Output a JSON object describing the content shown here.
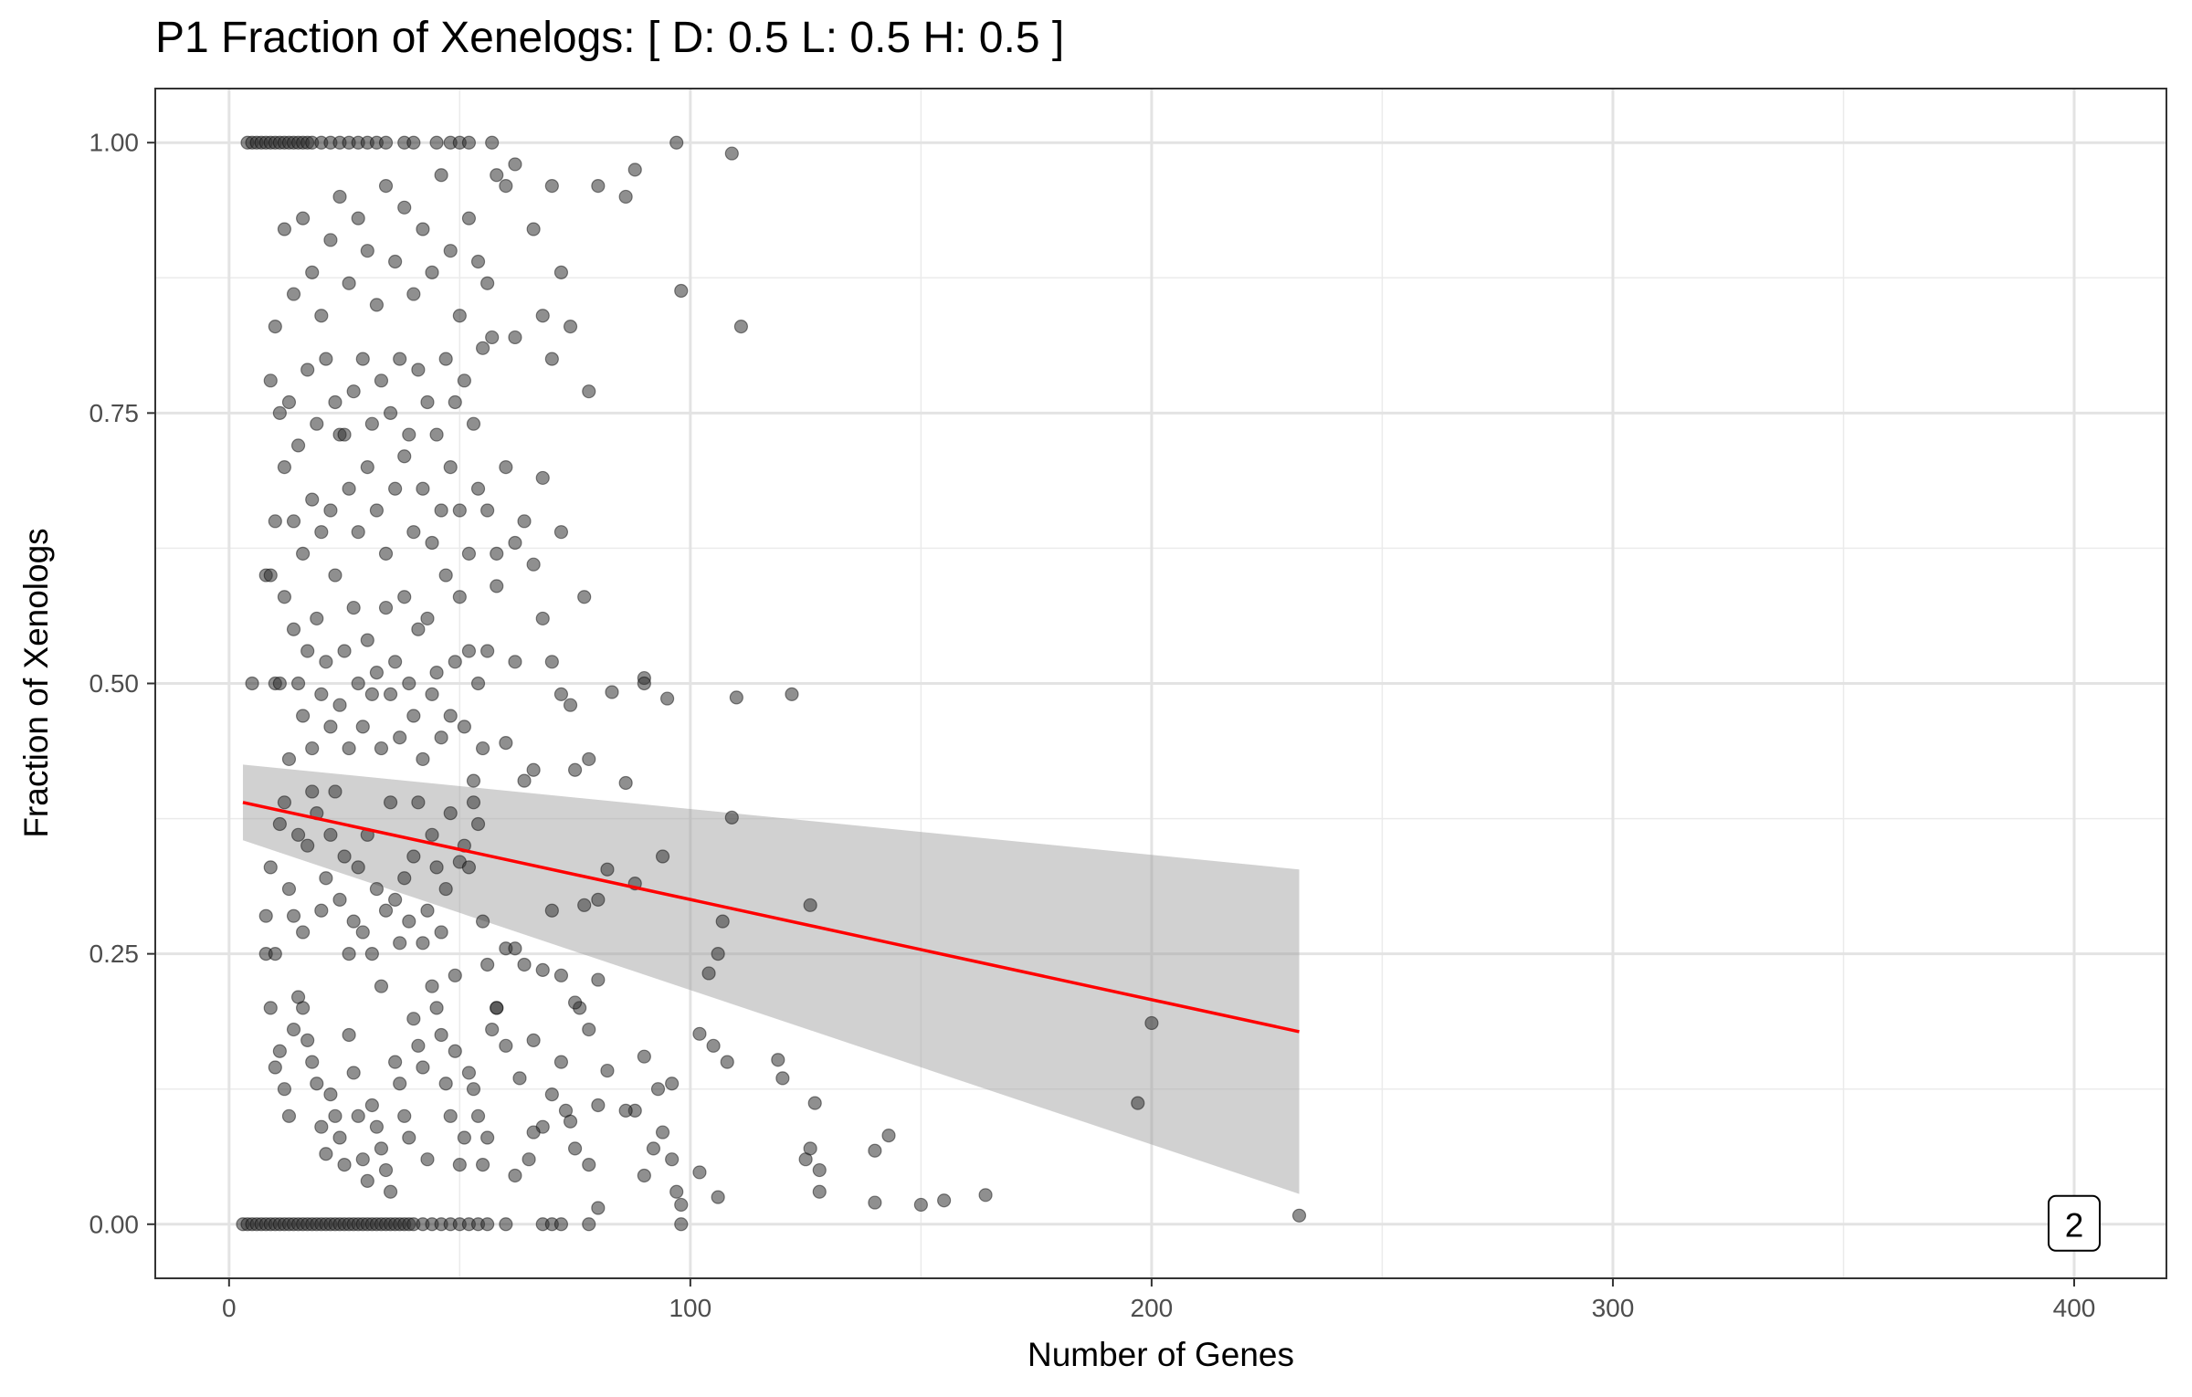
{
  "chart_data": {
    "type": "scatter",
    "title": "P1 Fraction of Xenelogs: [ D: 0.5 L: 0.5 H: 0.5 ]",
    "xlabel": "Number of Genes",
    "ylabel": "Fraction of Xenologs",
    "xlim": [
      -16,
      420
    ],
    "ylim": [
      -0.05,
      1.05
    ],
    "x_ticks": [
      0,
      100,
      200,
      300,
      400
    ],
    "x_tick_labels": [
      "0",
      "100",
      "200",
      "300",
      "400"
    ],
    "y_ticks": [
      0.0,
      0.25,
      0.5,
      0.75,
      1.0
    ],
    "y_tick_labels": [
      "0.00",
      "0.25",
      "0.50",
      "0.75",
      "1.00"
    ],
    "grid": true,
    "legend": "none",
    "point_color": "#333333",
    "fit_line_color": "#ff0000",
    "ribbon_color": "#999999",
    "fit": {
      "method": "linear",
      "x": [
        3,
        232
      ],
      "y": [
        0.39,
        0.178
      ],
      "ci_lower": [
        0.355,
        0.028
      ],
      "ci_upper": [
        0.425,
        0.328
      ]
    },
    "annotation": {
      "text": "2",
      "x": 400,
      "y": 0.0
    },
    "points": [
      [
        4,
        1
      ],
      [
        5,
        1
      ],
      [
        6,
        1
      ],
      [
        7,
        1
      ],
      [
        8,
        1
      ],
      [
        9,
        1
      ],
      [
        10,
        1
      ],
      [
        11,
        1
      ],
      [
        12,
        1
      ],
      [
        13,
        1
      ],
      [
        14,
        1
      ],
      [
        15,
        1
      ],
      [
        16,
        1
      ],
      [
        17,
        1
      ],
      [
        18,
        1
      ],
      [
        20,
        1
      ],
      [
        22,
        1
      ],
      [
        24,
        1
      ],
      [
        26,
        1
      ],
      [
        28,
        1
      ],
      [
        30,
        1
      ],
      [
        32,
        1
      ],
      [
        34,
        1
      ],
      [
        38,
        1
      ],
      [
        40,
        1
      ],
      [
        45,
        1
      ],
      [
        48,
        1
      ],
      [
        50,
        1
      ],
      [
        52,
        1
      ],
      [
        57,
        1
      ],
      [
        97,
        1
      ],
      [
        109,
        0.99
      ],
      [
        3,
        0
      ],
      [
        4,
        0
      ],
      [
        5,
        0
      ],
      [
        6,
        0
      ],
      [
        7,
        0
      ],
      [
        8,
        0
      ],
      [
        9,
        0
      ],
      [
        10,
        0
      ],
      [
        11,
        0
      ],
      [
        12,
        0
      ],
      [
        13,
        0
      ],
      [
        14,
        0
      ],
      [
        15,
        0
      ],
      [
        16,
        0
      ],
      [
        17,
        0
      ],
      [
        18,
        0
      ],
      [
        19,
        0
      ],
      [
        20,
        0
      ],
      [
        21,
        0
      ],
      [
        22,
        0
      ],
      [
        23,
        0
      ],
      [
        24,
        0
      ],
      [
        25,
        0
      ],
      [
        26,
        0
      ],
      [
        27,
        0
      ],
      [
        28,
        0
      ],
      [
        29,
        0
      ],
      [
        30,
        0
      ],
      [
        31,
        0
      ],
      [
        32,
        0
      ],
      [
        33,
        0
      ],
      [
        34,
        0
      ],
      [
        35,
        0
      ],
      [
        36,
        0
      ],
      [
        37,
        0
      ],
      [
        38,
        0
      ],
      [
        39,
        0
      ],
      [
        40,
        0
      ],
      [
        42,
        0
      ],
      [
        44,
        0
      ],
      [
        46,
        0
      ],
      [
        48,
        0
      ],
      [
        50,
        0
      ],
      [
        52,
        0
      ],
      [
        54,
        0
      ],
      [
        56,
        0
      ],
      [
        60,
        0
      ],
      [
        68,
        0
      ],
      [
        70,
        0
      ],
      [
        72,
        0
      ],
      [
        78,
        0
      ],
      [
        98,
        0
      ],
      [
        232,
        0.008
      ],
      [
        150,
        0.018
      ],
      [
        155,
        0.022
      ],
      [
        164,
        0.027
      ],
      [
        140,
        0.02
      ],
      [
        128,
        0.03
      ],
      [
        106,
        0.025
      ],
      [
        98,
        0.018
      ],
      [
        97,
        0.03
      ],
      [
        102,
        0.048
      ],
      [
        96,
        0.06
      ],
      [
        90,
        0.045
      ],
      [
        92,
        0.07
      ],
      [
        125,
        0.06
      ],
      [
        126,
        0.07
      ],
      [
        128,
        0.05
      ],
      [
        140,
        0.068
      ],
      [
        143,
        0.082
      ],
      [
        127,
        0.112
      ],
      [
        197,
        0.112
      ],
      [
        200,
        0.186
      ],
      [
        119,
        0.152
      ],
      [
        120,
        0.135
      ],
      [
        108,
        0.15
      ],
      [
        102,
        0.176
      ],
      [
        105,
        0.165
      ],
      [
        96,
        0.13
      ],
      [
        93,
        0.125
      ],
      [
        90,
        0.155
      ],
      [
        94,
        0.085
      ],
      [
        88,
        0.105
      ],
      [
        86,
        0.105
      ],
      [
        104,
        0.232
      ],
      [
        106,
        0.25
      ],
      [
        107,
        0.28
      ],
      [
        126,
        0.295
      ],
      [
        109,
        0.376
      ],
      [
        110,
        0.487
      ],
      [
        122,
        0.49
      ],
      [
        95,
        0.486
      ],
      [
        90,
        0.505
      ],
      [
        90,
        0.5
      ],
      [
        83,
        0.492
      ],
      [
        86,
        0.408
      ],
      [
        88,
        0.315
      ],
      [
        94,
        0.34
      ],
      [
        82,
        0.328
      ],
      [
        80,
        0.226
      ],
      [
        78,
        0.18
      ],
      [
        82,
        0.142
      ],
      [
        80,
        0.11
      ],
      [
        78,
        0.055
      ],
      [
        80,
        0.015
      ],
      [
        76,
        0.2
      ],
      [
        75,
        0.07
      ],
      [
        72,
        0.15
      ],
      [
        73,
        0.105
      ],
      [
        74,
        0.095
      ],
      [
        70,
        0.12
      ],
      [
        68,
        0.09
      ],
      [
        66,
        0.085
      ],
      [
        65,
        0.06
      ],
      [
        63,
        0.135
      ],
      [
        62,
        0.045
      ],
      [
        60,
        0.165
      ],
      [
        58,
        0.2
      ],
      [
        57,
        0.18
      ],
      [
        56,
        0.08
      ],
      [
        55,
        0.055
      ],
      [
        54,
        0.1
      ],
      [
        53,
        0.125
      ],
      [
        52,
        0.14
      ],
      [
        51,
        0.08
      ],
      [
        50,
        0.055
      ],
      [
        49,
        0.16
      ],
      [
        48,
        0.1
      ],
      [
        47,
        0.13
      ],
      [
        46,
        0.175
      ],
      [
        45,
        0.2
      ],
      [
        44,
        0.22
      ],
      [
        43,
        0.06
      ],
      [
        42,
        0.145
      ],
      [
        41,
        0.165
      ],
      [
        40,
        0.19
      ],
      [
        39,
        0.08
      ],
      [
        38,
        0.1
      ],
      [
        37,
        0.13
      ],
      [
        36,
        0.15
      ],
      [
        35,
        0.03
      ],
      [
        34,
        0.05
      ],
      [
        33,
        0.07
      ],
      [
        32,
        0.09
      ],
      [
        31,
        0.11
      ],
      [
        30,
        0.04
      ],
      [
        29,
        0.06
      ],
      [
        28,
        0.1
      ],
      [
        27,
        0.14
      ],
      [
        26,
        0.175
      ],
      [
        25,
        0.055
      ],
      [
        24,
        0.08
      ],
      [
        23,
        0.1
      ],
      [
        22,
        0.12
      ],
      [
        21,
        0.065
      ],
      [
        20,
        0.09
      ],
      [
        19,
        0.13
      ],
      [
        18,
        0.15
      ],
      [
        17,
        0.17
      ],
      [
        16,
        0.2
      ],
      [
        15,
        0.21
      ],
      [
        14,
        0.18
      ],
      [
        13,
        0.1
      ],
      [
        12,
        0.125
      ],
      [
        11,
        0.16
      ],
      [
        10,
        0.145
      ],
      [
        9,
        0.2
      ],
      [
        8,
        0.25
      ],
      [
        8,
        0.285
      ],
      [
        9,
        0.33
      ],
      [
        10,
        0.25
      ],
      [
        11,
        0.37
      ],
      [
        12,
        0.39
      ],
      [
        13,
        0.31
      ],
      [
        14,
        0.285
      ],
      [
        15,
        0.36
      ],
      [
        16,
        0.27
      ],
      [
        17,
        0.35
      ],
      [
        18,
        0.4
      ],
      [
        19,
        0.38
      ],
      [
        20,
        0.29
      ],
      [
        21,
        0.32
      ],
      [
        22,
        0.36
      ],
      [
        23,
        0.4
      ],
      [
        24,
        0.3
      ],
      [
        25,
        0.34
      ],
      [
        26,
        0.25
      ],
      [
        27,
        0.28
      ],
      [
        28,
        0.33
      ],
      [
        29,
        0.27
      ],
      [
        30,
        0.36
      ],
      [
        31,
        0.25
      ],
      [
        32,
        0.31
      ],
      [
        33,
        0.22
      ],
      [
        34,
        0.29
      ],
      [
        35,
        0.39
      ],
      [
        36,
        0.3
      ],
      [
        37,
        0.26
      ],
      [
        38,
        0.32
      ],
      [
        39,
        0.28
      ],
      [
        40,
        0.34
      ],
      [
        41,
        0.39
      ],
      [
        42,
        0.26
      ],
      [
        43,
        0.29
      ],
      [
        44,
        0.36
      ],
      [
        45,
        0.33
      ],
      [
        46,
        0.27
      ],
      [
        47,
        0.31
      ],
      [
        48,
        0.38
      ],
      [
        49,
        0.23
      ],
      [
        50,
        0.335
      ],
      [
        51,
        0.35
      ],
      [
        52,
        0.33
      ],
      [
        53,
        0.39
      ],
      [
        54,
        0.37
      ],
      [
        55,
        0.28
      ],
      [
        56,
        0.24
      ],
      [
        58,
        0.2
      ],
      [
        60,
        0.255
      ],
      [
        62,
        0.255
      ],
      [
        64,
        0.24
      ],
      [
        66,
        0.17
      ],
      [
        68,
        0.235
      ],
      [
        70,
        0.29
      ],
      [
        72,
        0.23
      ],
      [
        75,
        0.205
      ],
      [
        77,
        0.295
      ],
      [
        80,
        0.3
      ],
      [
        5,
        0.5
      ],
      [
        8,
        0.6
      ],
      [
        9,
        0.6
      ],
      [
        10,
        0.5
      ],
      [
        11,
        0.5
      ],
      [
        12,
        0.58
      ],
      [
        13,
        0.43
      ],
      [
        14,
        0.55
      ],
      [
        15,
        0.5
      ],
      [
        16,
        0.47
      ],
      [
        17,
        0.53
      ],
      [
        18,
        0.44
      ],
      [
        19,
        0.56
      ],
      [
        20,
        0.49
      ],
      [
        21,
        0.52
      ],
      [
        22,
        0.46
      ],
      [
        23,
        0.6
      ],
      [
        24,
        0.48
      ],
      [
        25,
        0.53
      ],
      [
        26,
        0.44
      ],
      [
        27,
        0.57
      ],
      [
        28,
        0.5
      ],
      [
        29,
        0.46
      ],
      [
        30,
        0.54
      ],
      [
        31,
        0.49
      ],
      [
        32,
        0.51
      ],
      [
        33,
        0.44
      ],
      [
        34,
        0.57
      ],
      [
        35,
        0.49
      ],
      [
        36,
        0.52
      ],
      [
        37,
        0.45
      ],
      [
        38,
        0.58
      ],
      [
        39,
        0.5
      ],
      [
        40,
        0.47
      ],
      [
        41,
        0.55
      ],
      [
        42,
        0.43
      ],
      [
        43,
        0.56
      ],
      [
        44,
        0.49
      ],
      [
        45,
        0.51
      ],
      [
        46,
        0.45
      ],
      [
        47,
        0.6
      ],
      [
        48,
        0.47
      ],
      [
        49,
        0.52
      ],
      [
        50,
        0.58
      ],
      [
        51,
        0.46
      ],
      [
        52,
        0.53
      ],
      [
        53,
        0.41
      ],
      [
        54,
        0.5
      ],
      [
        55,
        0.44
      ],
      [
        56,
        0.53
      ],
      [
        58,
        0.59
      ],
      [
        60,
        0.445
      ],
      [
        62,
        0.52
      ],
      [
        64,
        0.41
      ],
      [
        66,
        0.42
      ],
      [
        68,
        0.56
      ],
      [
        70,
        0.52
      ],
      [
        72,
        0.49
      ],
      [
        74,
        0.48
      ],
      [
        75,
        0.42
      ],
      [
        77,
        0.58
      ],
      [
        78,
        0.43
      ],
      [
        10,
        0.65
      ],
      [
        12,
        0.7
      ],
      [
        14,
        0.65
      ],
      [
        16,
        0.62
      ],
      [
        18,
        0.67
      ],
      [
        20,
        0.64
      ],
      [
        22,
        0.66
      ],
      [
        24,
        0.73
      ],
      [
        26,
        0.68
      ],
      [
        28,
        0.64
      ],
      [
        30,
        0.7
      ],
      [
        32,
        0.66
      ],
      [
        34,
        0.62
      ],
      [
        36,
        0.68
      ],
      [
        38,
        0.71
      ],
      [
        40,
        0.64
      ],
      [
        42,
        0.68
      ],
      [
        44,
        0.63
      ],
      [
        46,
        0.66
      ],
      [
        48,
        0.7
      ],
      [
        50,
        0.66
      ],
      [
        52,
        0.62
      ],
      [
        54,
        0.68
      ],
      [
        56,
        0.66
      ],
      [
        58,
        0.62
      ],
      [
        60,
        0.7
      ],
      [
        62,
        0.63
      ],
      [
        64,
        0.65
      ],
      [
        66,
        0.61
      ],
      [
        68,
        0.69
      ],
      [
        72,
        0.64
      ],
      [
        9,
        0.78
      ],
      [
        11,
        0.75
      ],
      [
        13,
        0.76
      ],
      [
        15,
        0.72
      ],
      [
        17,
        0.79
      ],
      [
        19,
        0.74
      ],
      [
        21,
        0.8
      ],
      [
        23,
        0.76
      ],
      [
        25,
        0.73
      ],
      [
        27,
        0.77
      ],
      [
        29,
        0.8
      ],
      [
        31,
        0.74
      ],
      [
        33,
        0.78
      ],
      [
        35,
        0.75
      ],
      [
        37,
        0.8
      ],
      [
        39,
        0.73
      ],
      [
        41,
        0.79
      ],
      [
        43,
        0.76
      ],
      [
        45,
        0.73
      ],
      [
        47,
        0.8
      ],
      [
        49,
        0.76
      ],
      [
        51,
        0.78
      ],
      [
        53,
        0.74
      ],
      [
        55,
        0.81
      ],
      [
        57,
        0.82
      ],
      [
        62,
        0.82
      ],
      [
        70,
        0.8
      ],
      [
        78,
        0.77
      ],
      [
        10,
        0.83
      ],
      [
        12,
        0.92
      ],
      [
        14,
        0.86
      ],
      [
        16,
        0.93
      ],
      [
        18,
        0.88
      ],
      [
        20,
        0.84
      ],
      [
        22,
        0.91
      ],
      [
        24,
        0.95
      ],
      [
        26,
        0.87
      ],
      [
        28,
        0.93
      ],
      [
        30,
        0.9
      ],
      [
        32,
        0.85
      ],
      [
        34,
        0.96
      ],
      [
        36,
        0.89
      ],
      [
        38,
        0.94
      ],
      [
        40,
        0.86
      ],
      [
        42,
        0.92
      ],
      [
        44,
        0.88
      ],
      [
        46,
        0.97
      ],
      [
        48,
        0.9
      ],
      [
        50,
        0.84
      ],
      [
        52,
        0.93
      ],
      [
        54,
        0.89
      ],
      [
        56,
        0.87
      ],
      [
        58,
        0.97
      ],
      [
        60,
        0.96
      ],
      [
        62,
        0.98
      ],
      [
        66,
        0.92
      ],
      [
        68,
        0.84
      ],
      [
        70,
        0.96
      ],
      [
        72,
        0.88
      ],
      [
        74,
        0.83
      ],
      [
        80,
        0.96
      ],
      [
        86,
        0.95
      ],
      [
        88,
        0.975
      ],
      [
        98,
        0.863
      ],
      [
        111,
        0.83
      ]
    ]
  }
}
